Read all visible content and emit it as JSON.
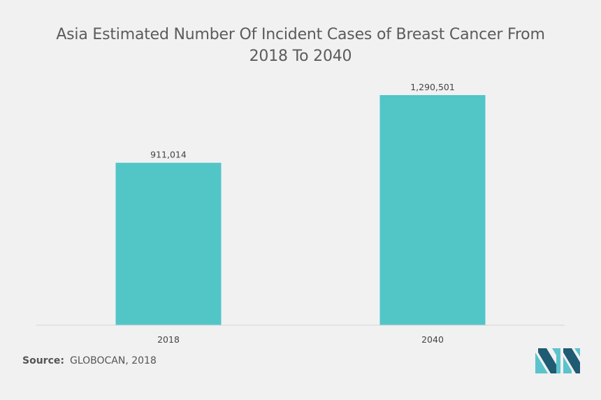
{
  "title": "Asia Estimated Number Of Incident Cases of Breast Cancer From 2018 To 2040",
  "source": {
    "label": "Source:",
    "value": "GLOBOCAN, 2018"
  },
  "colors": {
    "bar": "#52c5c7",
    "axis": "#d5d5d5",
    "text": "#444444",
    "logo_dark": "#1f5b73",
    "logo_light": "#5cc3cc"
  },
  "logo_icon": "mordor-intelligence-logo-icon",
  "chart_data": {
    "type": "bar",
    "categories": [
      "2018",
      "2040"
    ],
    "values": [
      911014,
      1290501
    ],
    "data_labels": [
      "911,014",
      "1,290,501"
    ],
    "title": "Asia Estimated Number Of Incident Cases of Breast Cancer From 2018 To 2040",
    "xlabel": "",
    "ylabel": "",
    "ylim": [
      0,
      1400000
    ],
    "grid": false,
    "legend": "none"
  }
}
